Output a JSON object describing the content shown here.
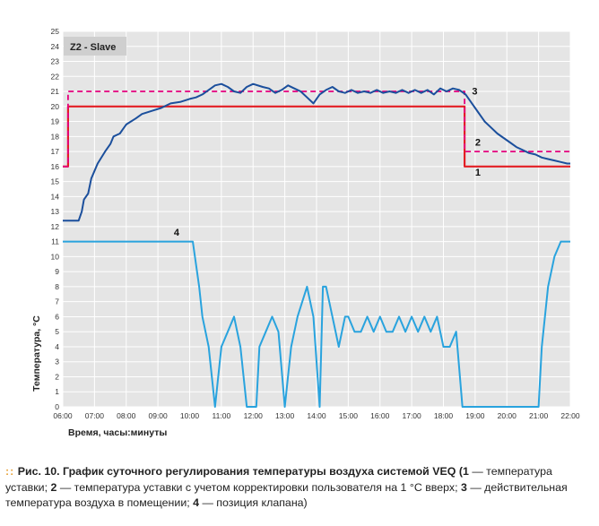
{
  "chart_data": {
    "type": "line",
    "panel_label": "Z2 - Slave",
    "xlabel": "Время, часы:минуты",
    "ylabel": "Температура, °C",
    "xlim": [
      "06:00",
      "22:00"
    ],
    "ylim": [
      0,
      25
    ],
    "x_ticks": [
      "06:00",
      "07:00",
      "08:00",
      "09:00",
      "10:00",
      "11:00",
      "12:00",
      "13:00",
      "14:00",
      "15:00",
      "16:00",
      "17:00",
      "18:00",
      "19:00",
      "20:00",
      "21:00",
      "22:00"
    ],
    "y_ticks": [
      0,
      1,
      2,
      3,
      4,
      5,
      6,
      7,
      8,
      9,
      10,
      11,
      12,
      13,
      14,
      15,
      16,
      17,
      18,
      19,
      20,
      21,
      22,
      23,
      24,
      25
    ],
    "grid": true,
    "colors": {
      "setpoint": "#e31e24",
      "corrected": "#e5007e",
      "actual": "#1b4f9c",
      "valve": "#29a3de",
      "background": "#e5e5e5",
      "grid": "#ffffff"
    },
    "series": [
      {
        "id": "setpoint",
        "name": "1",
        "style": "solid",
        "points": [
          [
            "06:00",
            16
          ],
          [
            "06:10",
            16
          ],
          [
            "06:10",
            20
          ],
          [
            "18:40",
            20
          ],
          [
            "18:40",
            16
          ],
          [
            "22:00",
            16
          ]
        ]
      },
      {
        "id": "corrected",
        "name": "2",
        "style": "dashed",
        "points": [
          [
            "06:00",
            16
          ],
          [
            "06:10",
            16
          ],
          [
            "06:10",
            21
          ],
          [
            "18:40",
            21
          ],
          [
            "18:40",
            17
          ],
          [
            "22:00",
            17
          ]
        ]
      },
      {
        "id": "actual",
        "name": "3",
        "style": "solid",
        "points": [
          [
            "06:00",
            12.4
          ],
          [
            "06:30",
            12.4
          ],
          [
            "06:36",
            13
          ],
          [
            "06:40",
            13.8
          ],
          [
            "06:48",
            14.2
          ],
          [
            "06:54",
            15.2
          ],
          [
            "07:06",
            16.2
          ],
          [
            "07:20",
            17
          ],
          [
            "07:30",
            17.5
          ],
          [
            "07:36",
            18
          ],
          [
            "07:48",
            18.2
          ],
          [
            "07:54",
            18.5
          ],
          [
            "08:00",
            18.8
          ],
          [
            "08:18",
            19.2
          ],
          [
            "08:30",
            19.5
          ],
          [
            "08:48",
            19.7
          ],
          [
            "09:06",
            19.9
          ],
          [
            "09:24",
            20.2
          ],
          [
            "09:42",
            20.3
          ],
          [
            "10:00",
            20.5
          ],
          [
            "10:12",
            20.6
          ],
          [
            "10:24",
            20.8
          ],
          [
            "10:36",
            21.1
          ],
          [
            "10:48",
            21.4
          ],
          [
            "11:00",
            21.5
          ],
          [
            "11:12",
            21.3
          ],
          [
            "11:24",
            21
          ],
          [
            "11:36",
            20.9
          ],
          [
            "11:48",
            21.3
          ],
          [
            "12:00",
            21.5
          ],
          [
            "12:18",
            21.3
          ],
          [
            "12:30",
            21.2
          ],
          [
            "12:42",
            20.9
          ],
          [
            "12:54",
            21.1
          ],
          [
            "13:06",
            21.4
          ],
          [
            "13:18",
            21.2
          ],
          [
            "13:30",
            21
          ],
          [
            "13:42",
            20.6
          ],
          [
            "13:54",
            20.2
          ],
          [
            "14:06",
            20.8
          ],
          [
            "14:18",
            21.1
          ],
          [
            "14:30",
            21.3
          ],
          [
            "14:42",
            21
          ],
          [
            "14:54",
            20.9
          ],
          [
            "15:06",
            21.1
          ],
          [
            "15:18",
            20.9
          ],
          [
            "15:30",
            21
          ],
          [
            "15:42",
            20.9
          ],
          [
            "15:54",
            21.1
          ],
          [
            "16:06",
            20.9
          ],
          [
            "16:18",
            21
          ],
          [
            "16:30",
            20.9
          ],
          [
            "16:42",
            21.1
          ],
          [
            "16:54",
            20.9
          ],
          [
            "17:06",
            21.1
          ],
          [
            "17:18",
            20.9
          ],
          [
            "17:30",
            21.1
          ],
          [
            "17:42",
            20.8
          ],
          [
            "17:54",
            21.2
          ],
          [
            "18:06",
            21
          ],
          [
            "18:18",
            21.2
          ],
          [
            "18:30",
            21.1
          ],
          [
            "18:42",
            20.8
          ],
          [
            "18:54",
            20.2
          ],
          [
            "19:06",
            19.6
          ],
          [
            "19:18",
            19
          ],
          [
            "19:30",
            18.6
          ],
          [
            "19:42",
            18.2
          ],
          [
            "19:54",
            17.9
          ],
          [
            "20:06",
            17.6
          ],
          [
            "20:18",
            17.3
          ],
          [
            "20:30",
            17.1
          ],
          [
            "20:42",
            16.9
          ],
          [
            "20:54",
            16.8
          ],
          [
            "21:06",
            16.6
          ],
          [
            "21:18",
            16.5
          ],
          [
            "21:30",
            16.4
          ],
          [
            "21:42",
            16.3
          ],
          [
            "21:54",
            16.2
          ],
          [
            "22:00",
            16.2
          ]
        ]
      },
      {
        "id": "valve",
        "name": "4",
        "style": "solid",
        "points": [
          [
            "06:00",
            11
          ],
          [
            "10:00",
            11
          ],
          [
            "10:06",
            11
          ],
          [
            "10:18",
            8
          ],
          [
            "10:24",
            6
          ],
          [
            "10:36",
            4
          ],
          [
            "10:48",
            0
          ],
          [
            "11:00",
            4
          ],
          [
            "11:12",
            5
          ],
          [
            "11:24",
            6
          ],
          [
            "11:36",
            4
          ],
          [
            "11:48",
            0
          ],
          [
            "12:06",
            0
          ],
          [
            "12:12",
            4
          ],
          [
            "12:24",
            5
          ],
          [
            "12:36",
            6
          ],
          [
            "12:48",
            5
          ],
          [
            "13:00",
            0
          ],
          [
            "13:12",
            4
          ],
          [
            "13:24",
            6
          ],
          [
            "13:42",
            8
          ],
          [
            "13:54",
            6
          ],
          [
            "14:06",
            0
          ],
          [
            "14:12",
            8
          ],
          [
            "14:18",
            8
          ],
          [
            "14:30",
            6
          ],
          [
            "14:42",
            4
          ],
          [
            "14:54",
            6
          ],
          [
            "15:00",
            6
          ],
          [
            "15:12",
            5
          ],
          [
            "15:24",
            5
          ],
          [
            "15:36",
            6
          ],
          [
            "15:48",
            5
          ],
          [
            "16:00",
            6
          ],
          [
            "16:12",
            5
          ],
          [
            "16:24",
            5
          ],
          [
            "16:36",
            6
          ],
          [
            "16:48",
            5
          ],
          [
            "17:00",
            6
          ],
          [
            "17:12",
            5
          ],
          [
            "17:24",
            6
          ],
          [
            "17:36",
            5
          ],
          [
            "17:48",
            6
          ],
          [
            "18:00",
            4
          ],
          [
            "18:12",
            4
          ],
          [
            "18:24",
            5
          ],
          [
            "18:36",
            0
          ],
          [
            "19:00",
            0
          ],
          [
            "20:00",
            0
          ],
          [
            "21:00",
            0
          ],
          [
            "21:06",
            4
          ],
          [
            "21:18",
            8
          ],
          [
            "21:30",
            10
          ],
          [
            "21:42",
            11
          ],
          [
            "22:00",
            11
          ]
        ]
      }
    ],
    "series_labels": [
      {
        "text": "1",
        "x": "19:00",
        "y": 15.4
      },
      {
        "text": "2",
        "x": "19:00",
        "y": 17.4
      },
      {
        "text": "3",
        "x": "18:54",
        "y": 20.8
      },
      {
        "text": "4",
        "x": "09:30",
        "y": 11.4
      }
    ]
  },
  "caption": {
    "dots": "::",
    "lead": "Рис. 10",
    "title": ". График суточного регулирования температуры воздуха системой VEQ (",
    "n1": "1",
    "t1": " — температура уставки; ",
    "n2": "2",
    "t2": " — температура уставки с учетом корректировки пользователя на 1 °C вверх; ",
    "n3": "3",
    "t3": " — действительная температура воздуха в помещении; ",
    "n4": "4",
    "t4": " — позиция клапана)"
  }
}
